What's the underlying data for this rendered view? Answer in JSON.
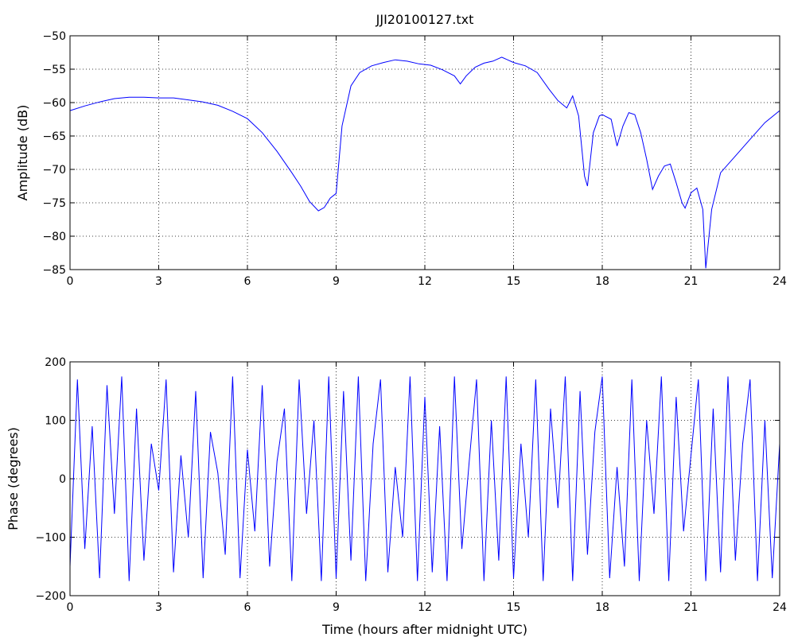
{
  "chart_data": [
    {
      "type": "line",
      "title": "JJI20100127.txt",
      "xlabel": "",
      "ylabel": "Amplitude (dB)",
      "xlim": [
        0,
        24
      ],
      "ylim": [
        -85,
        -50
      ],
      "xticks": [
        0,
        3,
        6,
        9,
        12,
        15,
        18,
        21,
        24
      ],
      "yticks": [
        -50,
        -55,
        -60,
        -65,
        -70,
        -75,
        -80,
        -85
      ],
      "grid": true,
      "color": "#0000ff",
      "series": [
        {
          "x": [
            0,
            0.5,
            1,
            1.5,
            2,
            2.5,
            3,
            3.5,
            4,
            4.5,
            5,
            5.5,
            6,
            6.5,
            7,
            7.5,
            7.8,
            8.1,
            8.4,
            8.6,
            8.8,
            9.0,
            9.2,
            9.5,
            9.8,
            10.2,
            10.6,
            11,
            11.4,
            11.8,
            12.2,
            12.6,
            13,
            13.2,
            13.4,
            13.7,
            14,
            14.3,
            14.6,
            15,
            15.4,
            15.8,
            16.2,
            16.5,
            16.8,
            17.0,
            17.2,
            17.4,
            17.5,
            17.7,
            17.9,
            18.0,
            18.3,
            18.5,
            18.7,
            18.9,
            19.1,
            19.3,
            19.5,
            19.7,
            19.9,
            20.1,
            20.3,
            20.5,
            20.7,
            20.8,
            21.0,
            21.2,
            21.4,
            21.5,
            21.7,
            22.0,
            22.5,
            23,
            23.5,
            24
          ],
          "y": [
            -61.2,
            -60.5,
            -59.9,
            -59.4,
            -59.2,
            -59.2,
            -59.3,
            -59.3,
            -59.6,
            -59.9,
            -60.4,
            -61.3,
            -62.4,
            -64.5,
            -67.3,
            -70.5,
            -72.5,
            -74.8,
            -76.2,
            -75.7,
            -74.3,
            -73.6,
            -63.5,
            -57.5,
            -55.5,
            -54.5,
            -54.0,
            -53.6,
            -53.8,
            -54.2,
            -54.4,
            -55.1,
            -56.0,
            -57.2,
            -56.0,
            -54.7,
            -54.1,
            -53.8,
            -53.2,
            -54.0,
            -54.5,
            -55.5,
            -58.0,
            -59.7,
            -60.8,
            -59.0,
            -62.0,
            -71.0,
            -72.5,
            -64.5,
            -62.0,
            -61.8,
            -62.5,
            -66.5,
            -63.5,
            -61.5,
            -61.8,
            -64.5,
            -68.5,
            -73.0,
            -71.0,
            -69.5,
            -69.2,
            -72.0,
            -75.0,
            -75.8,
            -73.5,
            -72.8,
            -76.0,
            -84.8,
            -76.0,
            -70.5,
            -68.0,
            -65.5,
            -63.0,
            -61.2
          ]
        }
      ]
    },
    {
      "type": "line",
      "title": "",
      "xlabel": "Time (hours after midnight UTC)",
      "ylabel": "Phase (degrees)",
      "xlim": [
        0,
        24
      ],
      "ylim": [
        -200,
        200
      ],
      "xticks": [
        0,
        3,
        6,
        9,
        12,
        15,
        18,
        21,
        24
      ],
      "yticks": [
        200,
        100,
        0,
        -100,
        -200
      ],
      "grid": true,
      "color": "#0000ff",
      "series": [
        {
          "x": [
            0,
            0.25,
            0.5,
            0.75,
            1,
            1.25,
            1.5,
            1.75,
            2,
            2.25,
            2.5,
            2.75,
            3,
            3.25,
            3.5,
            3.75,
            4,
            4.25,
            4.5,
            4.75,
            5,
            5.25,
            5.5,
            5.75,
            6,
            6.25,
            6.5,
            6.75,
            7,
            7.25,
            7.5,
            7.75,
            8,
            8.25,
            8.5,
            8.75,
            9,
            9.25,
            9.5,
            9.75,
            10,
            10.25,
            10.5,
            10.75,
            11,
            11.25,
            11.5,
            11.75,
            12,
            12.25,
            12.5,
            12.75,
            13,
            13.25,
            13.5,
            13.75,
            14,
            14.25,
            14.5,
            14.75,
            15,
            15.25,
            15.5,
            15.75,
            16,
            16.25,
            16.5,
            16.75,
            17,
            17.25,
            17.5,
            17.75,
            18,
            18.25,
            18.5,
            18.75,
            19,
            19.25,
            19.5,
            19.75,
            20,
            20.25,
            20.5,
            20.75,
            21,
            21.25,
            21.5,
            21.75,
            22,
            22.25,
            22.5,
            22.75,
            23,
            23.25,
            23.5,
            23.75,
            24
          ],
          "y": [
            -150,
            170,
            -120,
            90,
            -170,
            160,
            -60,
            175,
            -175,
            120,
            -140,
            60,
            -20,
            170,
            -160,
            40,
            -100,
            150,
            -170,
            80,
            10,
            -130,
            175,
            -170,
            50,
            -90,
            160,
            -150,
            30,
            120,
            -175,
            170,
            -60,
            100,
            -175,
            175,
            -170,
            150,
            -140,
            175,
            -175,
            60,
            170,
            -160,
            20,
            -100,
            175,
            -175,
            140,
            -160,
            90,
            -175,
            175,
            -120,
            30,
            170,
            -175,
            100,
            -140,
            175,
            -170,
            60,
            -100,
            170,
            -175,
            120,
            -50,
            175,
            -175,
            150,
            -130,
            80,
            175,
            -170,
            20,
            -150,
            170,
            -175,
            100,
            -60,
            175,
            -175,
            140,
            -90,
            40,
            170,
            -175,
            120,
            -160,
            175,
            -140,
            60,
            170,
            -175,
            100,
            -170,
            60
          ]
        }
      ]
    }
  ]
}
